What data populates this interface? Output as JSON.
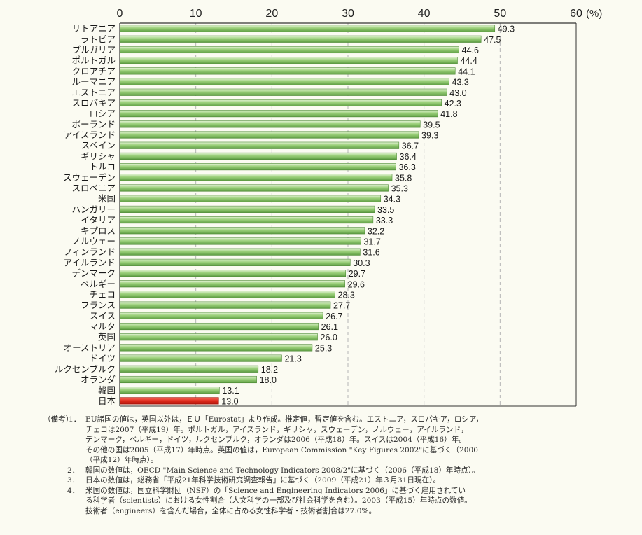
{
  "chart_data": {
    "type": "bar",
    "orientation": "horizontal",
    "categories": [
      "リトアニア",
      "ラトビア",
      "ブルガリア",
      "ポルトガル",
      "クロアチア",
      "ルーマニア",
      "エストニア",
      "スロバキア",
      "ロシア",
      "ポーランド",
      "アイスランド",
      "スペイン",
      "ギリシャ",
      "トルコ",
      "スウェーデン",
      "スロベニア",
      "米国",
      "ハンガリー",
      "イタリア",
      "キプロス",
      "ノルウェー",
      "フィンランド",
      "アイルランド",
      "デンマーク",
      "ベルギー",
      "チェコ",
      "フランス",
      "スイス",
      "マルタ",
      "英国",
      "オーストリア",
      "ドイツ",
      "ルクセンブルク",
      "オランダ",
      "韓国",
      "日本"
    ],
    "values": [
      49.3,
      47.5,
      44.6,
      44.4,
      44.1,
      43.3,
      43.0,
      42.3,
      41.8,
      39.5,
      39.3,
      36.7,
      36.4,
      36.3,
      35.8,
      35.3,
      34.3,
      33.5,
      33.3,
      32.2,
      31.7,
      31.6,
      30.3,
      29.7,
      29.6,
      28.3,
      27.7,
      26.7,
      26.1,
      26.0,
      25.3,
      21.3,
      18.2,
      18.0,
      13.1,
      13.0
    ],
    "value_labels": [
      "49.3",
      "47.5",
      "44.6",
      "44.4",
      "44.1",
      "43.3",
      "43.0",
      "42.3",
      "41.8",
      "39.5",
      "39.3",
      "36.7",
      "36.4",
      "36.3",
      "35.8",
      "35.3",
      "34.3",
      "33.5",
      "33.3",
      "32.2",
      "31.7",
      "31.6",
      "30.3",
      "29.7",
      "29.6",
      "28.3",
      "27.7",
      "26.7",
      "26.1",
      "26.0",
      "25.3",
      "21.3",
      "18.2",
      "18.0",
      "13.1",
      "13.0"
    ],
    "highlight_category": "日本",
    "xlim": [
      0,
      60
    ],
    "x_ticks": [
      "0",
      "10",
      "20",
      "30",
      "40",
      "50",
      "60"
    ],
    "x_unit": "(%)",
    "grid": "dashed vertical lines at 10-unit intervals",
    "colors": {
      "bar": "#8cc56a",
      "bar_light": "#d9efc9",
      "bar_edge": "#4e8a36",
      "highlight": "#e02a1c",
      "grid": "#b5b5b5",
      "axis": "#333333"
    }
  },
  "notes": {
    "label": "（備考）",
    "items": [
      {
        "num": "1．",
        "lines": [
          "EU諸国の値は，英国以外は，ＥＵ「Eurostat」より作成。推定値，暫定値を含む。エストニア，スロバキア，ロシア，",
          "チェコは2007（平成19）年。ポルトガル，アイスランド，ギリシャ，スウェーデン，ノルウェー，アイルランド，",
          "デンマーク，ベルギー，ドイツ，ルクセンブルク，オランダは2006（平成18）年。スイスは2004（平成16）年。",
          "その他の国は2005（平成17）年時点。英国の値は，European Commission \"Key Figures 2002\"に基づく（2000",
          "（平成12）年時点）。"
        ]
      },
      {
        "num": "2．",
        "lines": [
          "韓国の数値は，OECD \"Main Science and Technology Indicators 2008/2\"に基づく（2006（平成18）年時点）。"
        ]
      },
      {
        "num": "3．",
        "lines": [
          "日本の数値は，総務省「平成21年科学技術研究調査報告」に基づく（2009（平成21）年３月31日現在）。"
        ]
      },
      {
        "num": "4．",
        "lines": [
          "米国の数値は，国立科学財団（NSF）の「Science and Engineering Indicators 2006」に基づく雇用されてい",
          "る科学者（scientists）における女性割合（人文科学の一部及び社会科学を含む）。2003（平成15）年時点の数値。",
          "技術者（engineers）を含んだ場合，全体に占める女性科学者・技術者割合は27.0%。"
        ]
      }
    ]
  }
}
